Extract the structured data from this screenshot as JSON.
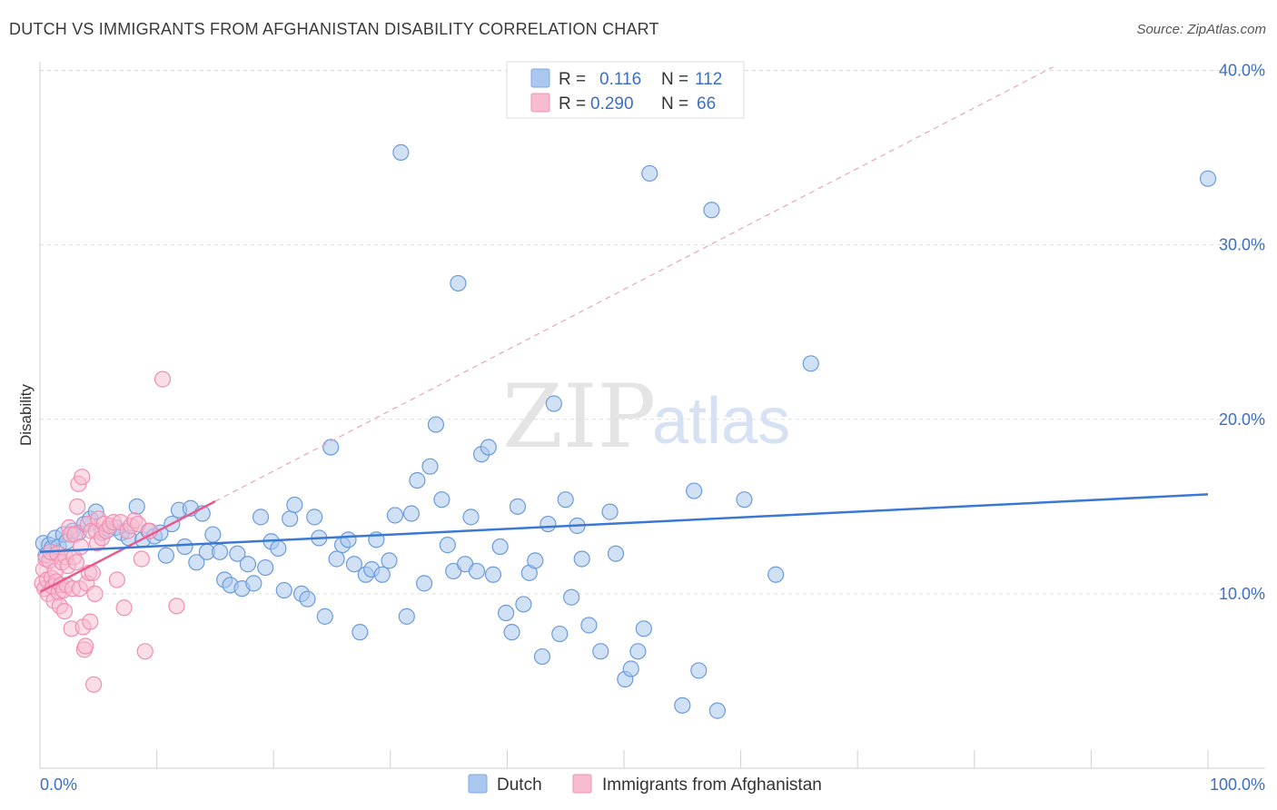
{
  "header": {
    "title": "DUTCH VS IMMIGRANTS FROM AFGHANISTAN DISABILITY CORRELATION CHART",
    "source": "Source: ZipAtlas.com"
  },
  "watermark": {
    "zip": "ZIP",
    "atlas": "atlas"
  },
  "legend_top": {
    "rows": [
      {
        "r_label": "R =",
        "r_value": "0.116",
        "n_label": "N =",
        "n_value": "112",
        "color": "#8fb6ea"
      },
      {
        "r_label": "R =",
        "r_value": "0.290",
        "n_label": "N =",
        "n_value": "66",
        "color": "#f5a8c2"
      }
    ]
  },
  "legend_bottom": {
    "items": [
      {
        "label": "Dutch",
        "color": "#8fb6ea"
      },
      {
        "label": "Immigrants from Afghanistan",
        "color": "#f5a8c2"
      }
    ]
  },
  "chart_data": {
    "type": "scatter",
    "title": "DUTCH VS IMMIGRANTS FROM AFGHANISTAN DISABILITY CORRELATION CHART",
    "xlabel": "",
    "ylabel": "Disability",
    "xlim": [
      0,
      100
    ],
    "ylim": [
      0,
      42
    ],
    "x_tick_labels": [
      "0.0%",
      "100.0%"
    ],
    "y_ticks": [
      10,
      20,
      30,
      40
    ],
    "y_tick_labels": [
      "10.0%",
      "20.0%",
      "30.0%",
      "40.0%"
    ],
    "grid": true,
    "colors": {
      "dutch": "#3b78d4",
      "dutch_fill": "#aac8ef",
      "afghan": "#e85a8d",
      "afghan_fill": "#f7bcd0"
    },
    "series": [
      {
        "name": "Dutch",
        "R": 0.116,
        "N": 112,
        "trend": {
          "x": [
            0,
            100
          ],
          "y": [
            12.4,
            15.7
          ]
        },
        "points": [
          [
            0.3,
            12.9
          ],
          [
            0.5,
            12.2
          ],
          [
            0.8,
            12.8
          ],
          [
            1.0,
            12.6
          ],
          [
            1.3,
            13.2
          ],
          [
            1.6,
            12.7
          ],
          [
            2.0,
            13.4
          ],
          [
            2.3,
            13.0
          ],
          [
            2.8,
            13.6
          ],
          [
            3.3,
            13.5
          ],
          [
            3.8,
            14.0
          ],
          [
            4.3,
            14.3
          ],
          [
            4.8,
            14.7
          ],
          [
            5.3,
            13.5
          ],
          [
            5.9,
            13.7
          ],
          [
            6.5,
            13.8
          ],
          [
            7.0,
            13.5
          ],
          [
            7.6,
            13.2
          ],
          [
            8.3,
            15.0
          ],
          [
            8.8,
            13.1
          ],
          [
            9.3,
            13.6
          ],
          [
            9.8,
            13.3
          ],
          [
            10.3,
            13.5
          ],
          [
            10.8,
            12.2
          ],
          [
            11.3,
            14.0
          ],
          [
            11.9,
            14.8
          ],
          [
            12.4,
            12.7
          ],
          [
            12.9,
            14.9
          ],
          [
            13.4,
            11.8
          ],
          [
            13.9,
            14.6
          ],
          [
            14.3,
            12.4
          ],
          [
            14.8,
            13.4
          ],
          [
            15.4,
            12.4
          ],
          [
            15.8,
            10.8
          ],
          [
            16.3,
            10.5
          ],
          [
            16.9,
            12.3
          ],
          [
            17.3,
            10.3
          ],
          [
            17.8,
            11.7
          ],
          [
            18.3,
            10.6
          ],
          [
            18.9,
            14.4
          ],
          [
            19.3,
            11.5
          ],
          [
            19.8,
            13.0
          ],
          [
            20.4,
            12.6
          ],
          [
            20.9,
            10.2
          ],
          [
            21.4,
            14.3
          ],
          [
            21.8,
            15.1
          ],
          [
            22.4,
            10.0
          ],
          [
            22.9,
            9.7
          ],
          [
            23.5,
            14.4
          ],
          [
            23.9,
            13.2
          ],
          [
            24.4,
            8.7
          ],
          [
            24.9,
            18.4
          ],
          [
            25.4,
            12.0
          ],
          [
            25.9,
            12.8
          ],
          [
            26.4,
            13.1
          ],
          [
            26.9,
            11.7
          ],
          [
            27.4,
            7.8
          ],
          [
            27.9,
            11.1
          ],
          [
            28.4,
            11.4
          ],
          [
            28.8,
            13.1
          ],
          [
            29.3,
            11.1
          ],
          [
            29.9,
            11.9
          ],
          [
            30.4,
            14.5
          ],
          [
            30.9,
            35.3
          ],
          [
            31.4,
            8.7
          ],
          [
            31.8,
            14.6
          ],
          [
            32.3,
            16.5
          ],
          [
            32.9,
            10.6
          ],
          [
            33.4,
            17.3
          ],
          [
            33.9,
            19.7
          ],
          [
            34.4,
            15.4
          ],
          [
            34.9,
            12.8
          ],
          [
            35.4,
            11.3
          ],
          [
            35.8,
            27.8
          ],
          [
            36.4,
            11.7
          ],
          [
            36.9,
            14.4
          ],
          [
            37.4,
            11.3
          ],
          [
            37.8,
            18.0
          ],
          [
            38.4,
            18.4
          ],
          [
            38.8,
            11.1
          ],
          [
            39.4,
            12.7
          ],
          [
            39.9,
            8.9
          ],
          [
            40.4,
            7.8
          ],
          [
            40.9,
            15.0
          ],
          [
            41.4,
            9.4
          ],
          [
            41.9,
            11.2
          ],
          [
            42.4,
            11.9
          ],
          [
            43.0,
            6.4
          ],
          [
            43.5,
            14.0
          ],
          [
            44.0,
            20.9
          ],
          [
            44.5,
            7.7
          ],
          [
            45.0,
            15.4
          ],
          [
            45.5,
            9.8
          ],
          [
            46.0,
            13.9
          ],
          [
            46.4,
            12.0
          ],
          [
            47.0,
            8.2
          ],
          [
            48.0,
            6.7
          ],
          [
            48.8,
            14.7
          ],
          [
            49.3,
            12.3
          ],
          [
            50.1,
            5.1
          ],
          [
            50.6,
            5.7
          ],
          [
            51.2,
            6.7
          ],
          [
            51.7,
            8.0
          ],
          [
            52.2,
            34.1
          ],
          [
            55.0,
            3.6
          ],
          [
            56.0,
            15.9
          ],
          [
            56.4,
            5.6
          ],
          [
            57.5,
            32.0
          ],
          [
            58.0,
            3.3
          ],
          [
            60.3,
            15.4
          ],
          [
            63.0,
            11.1
          ],
          [
            66.0,
            23.2
          ],
          [
            100.0,
            33.8
          ]
        ]
      },
      {
        "name": "Immigrants from Afghanistan",
        "R": 0.29,
        "N": 66,
        "trend": {
          "x": [
            0,
            15
          ],
          "y": [
            10.1,
            15.3
          ]
        },
        "trend_extended": {
          "x": [
            0,
            100
          ],
          "y": [
            10.1,
            44.8
          ]
        },
        "points": [
          [
            0.2,
            10.6
          ],
          [
            0.3,
            11.4
          ],
          [
            0.4,
            10.3
          ],
          [
            0.5,
            12.0
          ],
          [
            0.6,
            10.8
          ],
          [
            0.7,
            10.0
          ],
          [
            0.8,
            11.9
          ],
          [
            0.9,
            12.4
          ],
          [
            1.0,
            10.9
          ],
          [
            1.1,
            10.4
          ],
          [
            1.2,
            9.6
          ],
          [
            1.3,
            11.3
          ],
          [
            1.4,
            10.7
          ],
          [
            1.5,
            12.3
          ],
          [
            1.6,
            10.1
          ],
          [
            1.7,
            9.3
          ],
          [
            1.8,
            10.5
          ],
          [
            1.9,
            11.8
          ],
          [
            2.0,
            10.2
          ],
          [
            2.1,
            9.0
          ],
          [
            2.2,
            12.1
          ],
          [
            2.3,
            10.5
          ],
          [
            2.4,
            11.6
          ],
          [
            2.5,
            13.8
          ],
          [
            2.6,
            13.4
          ],
          [
            2.7,
            8.0
          ],
          [
            2.8,
            10.3
          ],
          [
            2.9,
            12.1
          ],
          [
            3.0,
            13.4
          ],
          [
            3.1,
            11.8
          ],
          [
            3.2,
            15.0
          ],
          [
            3.3,
            16.3
          ],
          [
            3.4,
            10.3
          ],
          [
            3.5,
            12.7
          ],
          [
            3.6,
            16.7
          ],
          [
            3.7,
            8.1
          ],
          [
            3.8,
            6.8
          ],
          [
            3.9,
            7.0
          ],
          [
            4.0,
            10.6
          ],
          [
            4.1,
            14.0
          ],
          [
            4.2,
            11.2
          ],
          [
            4.3,
            8.4
          ],
          [
            4.4,
            13.6
          ],
          [
            4.5,
            11.2
          ],
          [
            4.6,
            4.8
          ],
          [
            4.7,
            10.0
          ],
          [
            4.8,
            13.6
          ],
          [
            4.9,
            12.9
          ],
          [
            5.0,
            14.3
          ],
          [
            5.3,
            13.2
          ],
          [
            5.5,
            14.0
          ],
          [
            5.7,
            13.6
          ],
          [
            6.0,
            13.9
          ],
          [
            6.3,
            14.1
          ],
          [
            6.6,
            10.8
          ],
          [
            6.9,
            14.1
          ],
          [
            7.2,
            9.2
          ],
          [
            7.5,
            13.6
          ],
          [
            7.8,
            13.9
          ],
          [
            8.1,
            14.2
          ],
          [
            8.4,
            14.0
          ],
          [
            8.7,
            12.0
          ],
          [
            9.0,
            6.7
          ],
          [
            9.4,
            13.6
          ],
          [
            10.5,
            22.3
          ],
          [
            11.7,
            9.3
          ]
        ]
      }
    ]
  }
}
